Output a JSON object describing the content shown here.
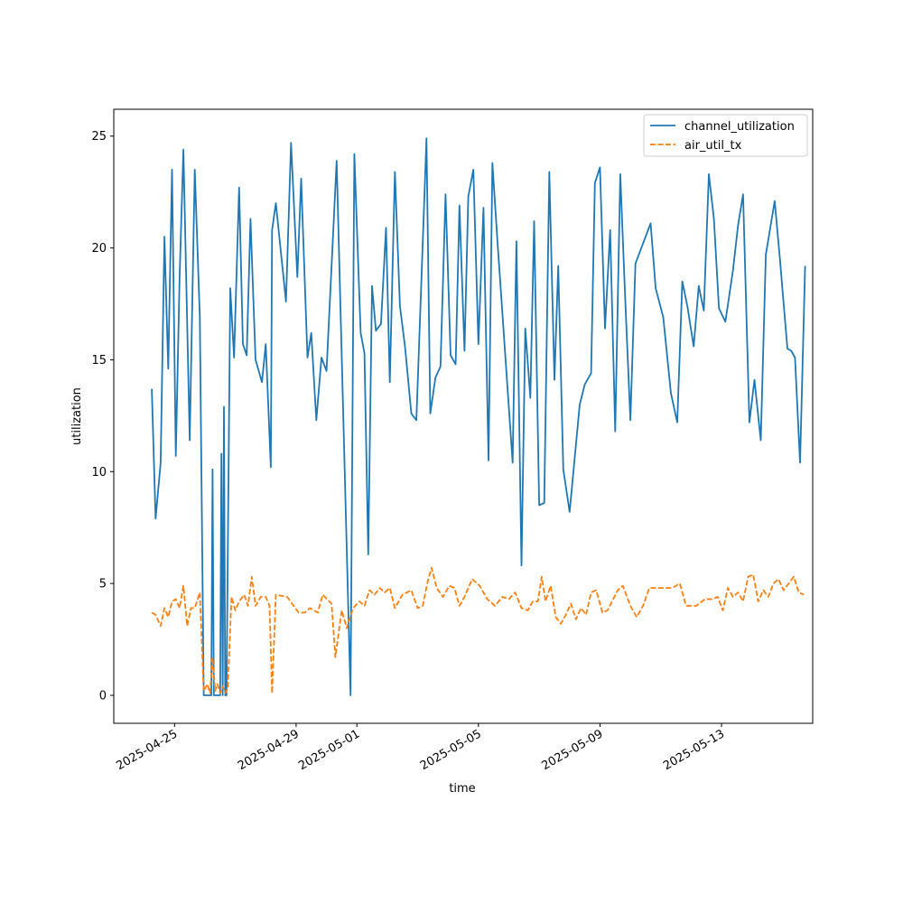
{
  "chart_data": {
    "type": "line",
    "xlabel": "time",
    "ylabel": "utilization",
    "x_axis": {
      "type": "date",
      "range": [
        "2025-04-23",
        "2025-05-16"
      ]
    },
    "xticks": [
      "2025-04-25",
      "2025-04-29",
      "2025-05-01",
      "2025-05-05",
      "2025-05-09",
      "2025-05-13"
    ],
    "yticks": [
      0,
      5,
      10,
      15,
      20,
      25
    ],
    "ylim": [
      -1.25,
      26.2
    ],
    "grid": false,
    "legend_position": "top-right",
    "series": [
      {
        "name": "channel_utilization",
        "color": "#1f77b4",
        "linestyle": "solid",
        "points": [
          [
            "2025-04-24T06:00",
            13.7
          ],
          [
            "2025-04-24T09:00",
            7.9
          ],
          [
            "2025-04-24T13:00",
            10.4
          ],
          [
            "2025-04-24T16:00",
            20.5
          ],
          [
            "2025-04-24T19:00",
            14.6
          ],
          [
            "2025-04-24T22:00",
            23.5
          ],
          [
            "2025-04-25T01:00",
            10.7
          ],
          [
            "2025-04-25T04:00",
            18.7
          ],
          [
            "2025-04-25T07:00",
            24.4
          ],
          [
            "2025-04-25T12:00",
            11.4
          ],
          [
            "2025-04-25T16:00",
            23.5
          ],
          [
            "2025-04-25T20:00",
            16.9
          ],
          [
            "2025-04-25T23:00",
            0
          ],
          [
            "2025-04-26T05:00",
            0
          ],
          [
            "2025-04-26T06:00",
            10.1
          ],
          [
            "2025-04-26T07:00",
            0
          ],
          [
            "2025-04-26T12:00",
            0
          ],
          [
            "2025-04-26T13:00",
            10.8
          ],
          [
            "2025-04-26T14:00",
            0
          ],
          [
            "2025-04-26T15:00",
            12.9
          ],
          [
            "2025-04-26T16:00",
            0
          ],
          [
            "2025-04-26T17:00",
            0
          ],
          [
            "2025-04-26T20:00",
            18.2
          ],
          [
            "2025-04-26T23:00",
            15.1
          ],
          [
            "2025-04-27T03:00",
            22.7
          ],
          [
            "2025-04-27T06:00",
            15.7
          ],
          [
            "2025-04-27T09:00",
            15.2
          ],
          [
            "2025-04-27T12:00",
            21.3
          ],
          [
            "2025-04-27T16:00",
            15.0
          ],
          [
            "2025-04-27T21:00",
            14.0
          ],
          [
            "2025-04-28T00:00",
            15.7
          ],
          [
            "2025-04-28T04:00",
            10.2
          ],
          [
            "2025-04-28T05:00",
            20.8
          ],
          [
            "2025-04-28T08:00",
            22.0
          ],
          [
            "2025-04-28T16:00",
            17.6
          ],
          [
            "2025-04-28T20:00",
            24.7
          ],
          [
            "2025-04-29T01:00",
            18.7
          ],
          [
            "2025-04-29T04:00",
            23.1
          ],
          [
            "2025-04-29T09:00",
            15.1
          ],
          [
            "2025-04-29T12:00",
            16.2
          ],
          [
            "2025-04-29T16:00",
            12.3
          ],
          [
            "2025-04-29T20:00",
            15.1
          ],
          [
            "2025-04-30T00:00",
            14.5
          ],
          [
            "2025-04-30T08:00",
            23.9
          ],
          [
            "2025-04-30T19:00",
            0
          ],
          [
            "2025-04-30T22:00",
            24.2
          ],
          [
            "2025-05-01T03:00",
            16.2
          ],
          [
            "2025-05-01T06:00",
            15.3
          ],
          [
            "2025-05-01T09:00",
            6.3
          ],
          [
            "2025-05-01T12:00",
            18.3
          ],
          [
            "2025-05-01T15:00",
            16.3
          ],
          [
            "2025-05-01T19:00",
            16.6
          ],
          [
            "2025-05-01T23:00",
            20.9
          ],
          [
            "2025-05-02T02:00",
            14.0
          ],
          [
            "2025-05-02T06:00",
            23.4
          ],
          [
            "2025-05-02T10:00",
            17.4
          ],
          [
            "2025-05-02T14:00",
            15.6
          ],
          [
            "2025-05-02T19:00",
            12.6
          ],
          [
            "2025-05-02T23:00",
            12.3
          ],
          [
            "2025-05-03T07:00",
            24.9
          ],
          [
            "2025-05-03T10:00",
            12.6
          ],
          [
            "2025-05-03T14:00",
            14.2
          ],
          [
            "2025-05-03T18:00",
            14.7
          ],
          [
            "2025-05-03T22:00",
            22.4
          ],
          [
            "2025-05-04T02:00",
            15.2
          ],
          [
            "2025-05-04T06:00",
            14.8
          ],
          [
            "2025-05-04T09:00",
            21.9
          ],
          [
            "2025-05-04T13:00",
            15.4
          ],
          [
            "2025-05-04T16:00",
            22.3
          ],
          [
            "2025-05-04T20:00",
            23.5
          ],
          [
            "2025-05-05T00:00",
            15.7
          ],
          [
            "2025-05-05T04:00",
            21.8
          ],
          [
            "2025-05-05T08:00",
            10.5
          ],
          [
            "2025-05-05T11:00",
            23.8
          ],
          [
            "2025-05-05T15:00",
            20.3
          ],
          [
            "2025-05-06T03:00",
            10.4
          ],
          [
            "2025-05-06T06:00",
            20.3
          ],
          [
            "2025-05-06T10:00",
            5.8
          ],
          [
            "2025-05-06T13:00",
            16.4
          ],
          [
            "2025-05-06T17:00",
            13.3
          ],
          [
            "2025-05-06T20:00",
            21.2
          ],
          [
            "2025-05-07T00:00",
            8.5
          ],
          [
            "2025-05-07T04:00",
            8.6
          ],
          [
            "2025-05-07T08:00",
            23.4
          ],
          [
            "2025-05-07T12:00",
            14.1
          ],
          [
            "2025-05-07T15:00",
            19.2
          ],
          [
            "2025-05-07T19:00",
            10.1
          ],
          [
            "2025-05-08T00:00",
            8.2
          ],
          [
            "2025-05-08T08:00",
            13.0
          ],
          [
            "2025-05-08T12:00",
            13.9
          ],
          [
            "2025-05-08T17:00",
            14.4
          ],
          [
            "2025-05-08T20:00",
            22.9
          ],
          [
            "2025-05-09T00:00",
            23.6
          ],
          [
            "2025-05-09T04:00",
            16.4
          ],
          [
            "2025-05-09T08:00",
            20.8
          ],
          [
            "2025-05-09T12:00",
            11.8
          ],
          [
            "2025-05-09T16:00",
            23.3
          ],
          [
            "2025-05-09T20:00",
            17.6
          ],
          [
            "2025-05-10T00:00",
            12.3
          ],
          [
            "2025-05-10T04:00",
            19.3
          ],
          [
            "2025-05-10T16:00",
            21.1
          ],
          [
            "2025-05-10T20:00",
            18.2
          ],
          [
            "2025-05-11T02:00",
            16.9
          ],
          [
            "2025-05-11T08:00",
            13.5
          ],
          [
            "2025-05-11T13:00",
            12.2
          ],
          [
            "2025-05-11T17:00",
            18.5
          ],
          [
            "2025-05-11T21:00",
            17.4
          ],
          [
            "2025-05-12T02:00",
            15.6
          ],
          [
            "2025-05-12T06:00",
            18.3
          ],
          [
            "2025-05-12T10:00",
            17.2
          ],
          [
            "2025-05-12T14:00",
            23.3
          ],
          [
            "2025-05-12T18:00",
            21.3
          ],
          [
            "2025-05-12T22:00",
            17.3
          ],
          [
            "2025-05-13T03:00",
            16.7
          ],
          [
            "2025-05-13T09:00",
            19.0
          ],
          [
            "2025-05-13T13:00",
            21.0
          ],
          [
            "2025-05-13T17:00",
            22.4
          ],
          [
            "2025-05-13T22:00",
            12.2
          ],
          [
            "2025-05-14T02:00",
            14.1
          ],
          [
            "2025-05-14T07:00",
            11.4
          ],
          [
            "2025-05-14T11:00",
            19.7
          ],
          [
            "2025-05-14T18:00",
            22.1
          ],
          [
            "2025-05-14T22:00",
            19.6
          ],
          [
            "2025-05-15T04:00",
            15.5
          ],
          [
            "2025-05-15T07:00",
            15.4
          ],
          [
            "2025-05-15T10:00",
            15.1
          ],
          [
            "2025-05-15T14:00",
            10.4
          ],
          [
            "2025-05-15T18:00",
            19.2
          ]
        ]
      },
      {
        "name": "air_util_tx",
        "color": "#ff7f0e",
        "linestyle": "dashed",
        "points": [
          [
            "2025-04-24T06:00",
            3.7
          ],
          [
            "2025-04-24T09:00",
            3.6
          ],
          [
            "2025-04-24T13:00",
            3.1
          ],
          [
            "2025-04-24T16:00",
            3.9
          ],
          [
            "2025-04-24T19:00",
            3.5
          ],
          [
            "2025-04-24T22:00",
            4.2
          ],
          [
            "2025-04-25T01:00",
            4.3
          ],
          [
            "2025-04-25T04:00",
            3.9
          ],
          [
            "2025-04-25T07:00",
            4.9
          ],
          [
            "2025-04-25T10:00",
            3.1
          ],
          [
            "2025-04-25T13:00",
            3.9
          ],
          [
            "2025-04-25T16:00",
            3.9
          ],
          [
            "2025-04-25T20:00",
            4.6
          ],
          [
            "2025-04-25T23:00",
            0.2
          ],
          [
            "2025-04-26T02:00",
            0.5
          ],
          [
            "2025-04-26T04:00",
            0.1
          ],
          [
            "2025-04-26T06:00",
            1.7
          ],
          [
            "2025-04-26T08:00",
            0.2
          ],
          [
            "2025-04-26T10:00",
            0.5
          ],
          [
            "2025-04-26T12:00",
            0.1
          ],
          [
            "2025-04-26T14:00",
            0.4
          ],
          [
            "2025-04-26T16:00",
            0.1
          ],
          [
            "2025-04-26T18:00",
            0.3
          ],
          [
            "2025-04-26T21:00",
            4.4
          ],
          [
            "2025-04-27T00:00",
            3.8
          ],
          [
            "2025-04-27T03:00",
            4.2
          ],
          [
            "2025-04-27T07:00",
            4.5
          ],
          [
            "2025-04-27T10:00",
            4.0
          ],
          [
            "2025-04-27T13:00",
            5.3
          ],
          [
            "2025-04-27T16:00",
            4.0
          ],
          [
            "2025-04-27T20:00",
            4.4
          ],
          [
            "2025-04-28T00:00",
            4.4
          ],
          [
            "2025-04-28T03:00",
            4.0
          ],
          [
            "2025-04-28T05:00",
            0.1
          ],
          [
            "2025-04-28T08:00",
            4.5
          ],
          [
            "2025-04-28T17:00",
            4.4
          ],
          [
            "2025-04-29T02:00",
            3.7
          ],
          [
            "2025-04-29T07:00",
            3.7
          ],
          [
            "2025-04-29T11:00",
            3.9
          ],
          [
            "2025-04-29T17:00",
            3.7
          ],
          [
            "2025-04-29T21:00",
            4.5
          ],
          [
            "2025-04-30T04:00",
            4.1
          ],
          [
            "2025-04-30T07:00",
            1.7
          ],
          [
            "2025-04-30T12:00",
            3.8
          ],
          [
            "2025-04-30T16:00",
            3.0
          ],
          [
            "2025-04-30T21:00",
            3.9
          ],
          [
            "2025-05-01T02:00",
            4.2
          ],
          [
            "2025-05-01T06:00",
            4.0
          ],
          [
            "2025-05-01T10:00",
            4.7
          ],
          [
            "2025-05-01T14:00",
            4.5
          ],
          [
            "2025-05-01T18:00",
            4.8
          ],
          [
            "2025-05-01T22:00",
            4.6
          ],
          [
            "2025-05-02T02:00",
            4.8
          ],
          [
            "2025-05-02T06:00",
            3.9
          ],
          [
            "2025-05-02T12:00",
            4.5
          ],
          [
            "2025-05-02T19:00",
            4.7
          ],
          [
            "2025-05-03T00:00",
            3.9
          ],
          [
            "2025-05-03T04:00",
            4.0
          ],
          [
            "2025-05-03T08:00",
            5.1
          ],
          [
            "2025-05-03T11:00",
            5.7
          ],
          [
            "2025-05-03T15:00",
            4.8
          ],
          [
            "2025-05-03T20:00",
            4.4
          ],
          [
            "2025-05-04T01:00",
            4.9
          ],
          [
            "2025-05-04T05:00",
            4.8
          ],
          [
            "2025-05-04T09:00",
            4.0
          ],
          [
            "2025-05-04T13:00",
            4.4
          ],
          [
            "2025-05-04T19:00",
            5.2
          ],
          [
            "2025-05-05T01:00",
            4.9
          ],
          [
            "2025-05-05T07:00",
            4.3
          ],
          [
            "2025-05-05T13:00",
            4.0
          ],
          [
            "2025-05-05T19:00",
            4.4
          ],
          [
            "2025-05-06T00:00",
            4.3
          ],
          [
            "2025-05-06T05:00",
            4.6
          ],
          [
            "2025-05-06T10:00",
            3.9
          ],
          [
            "2025-05-06T15:00",
            3.8
          ],
          [
            "2025-05-06T19:00",
            4.2
          ],
          [
            "2025-05-06T23:00",
            4.2
          ],
          [
            "2025-05-07T02:00",
            5.3
          ],
          [
            "2025-05-07T05:00",
            4.2
          ],
          [
            "2025-05-07T09:00",
            4.9
          ],
          [
            "2025-05-07T13:00",
            3.5
          ],
          [
            "2025-05-07T17:00",
            3.2
          ],
          [
            "2025-05-07T21:00",
            3.6
          ],
          [
            "2025-05-08T01:00",
            4.1
          ],
          [
            "2025-05-08T05:00",
            3.4
          ],
          [
            "2025-05-08T09:00",
            3.9
          ],
          [
            "2025-05-08T13:00",
            3.6
          ],
          [
            "2025-05-08T17:00",
            4.6
          ],
          [
            "2025-05-08T21:00",
            4.7
          ],
          [
            "2025-05-09T02:00",
            3.7
          ],
          [
            "2025-05-09T06:00",
            3.8
          ],
          [
            "2025-05-09T14:00",
            4.7
          ],
          [
            "2025-05-09T18:00",
            4.9
          ],
          [
            "2025-05-10T00:00",
            4.0
          ],
          [
            "2025-05-10T05:00",
            3.5
          ],
          [
            "2025-05-10T10:00",
            4.0
          ],
          [
            "2025-05-10T15:00",
            4.8
          ],
          [
            "2025-05-11T00:00",
            4.8
          ],
          [
            "2025-05-11T09:00",
            4.8
          ],
          [
            "2025-05-11T15:00",
            5.0
          ],
          [
            "2025-05-11T20:00",
            4.0
          ],
          [
            "2025-05-12T04:00",
            4.0
          ],
          [
            "2025-05-12T11:00",
            4.3
          ],
          [
            "2025-05-12T17:00",
            4.3
          ],
          [
            "2025-05-12T21:00",
            4.4
          ],
          [
            "2025-05-13T01:00",
            3.8
          ],
          [
            "2025-05-13T05:00",
            4.8
          ],
          [
            "2025-05-13T09:00",
            4.4
          ],
          [
            "2025-05-13T13:00",
            4.6
          ],
          [
            "2025-05-13T17:00",
            4.2
          ],
          [
            "2025-05-13T21:00",
            5.3
          ],
          [
            "2025-05-14T01:00",
            5.4
          ],
          [
            "2025-05-14T05:00",
            4.2
          ],
          [
            "2025-05-14T09:00",
            4.7
          ],
          [
            "2025-05-14T13:00",
            4.4
          ],
          [
            "2025-05-14T17:00",
            5.0
          ],
          [
            "2025-05-14T21:00",
            5.2
          ],
          [
            "2025-05-15T01:00",
            4.7
          ],
          [
            "2025-05-15T05:00",
            5.0
          ],
          [
            "2025-05-15T09:00",
            5.3
          ],
          [
            "2025-05-15T13:00",
            4.6
          ],
          [
            "2025-05-15T17:00",
            4.5
          ]
        ]
      }
    ]
  }
}
